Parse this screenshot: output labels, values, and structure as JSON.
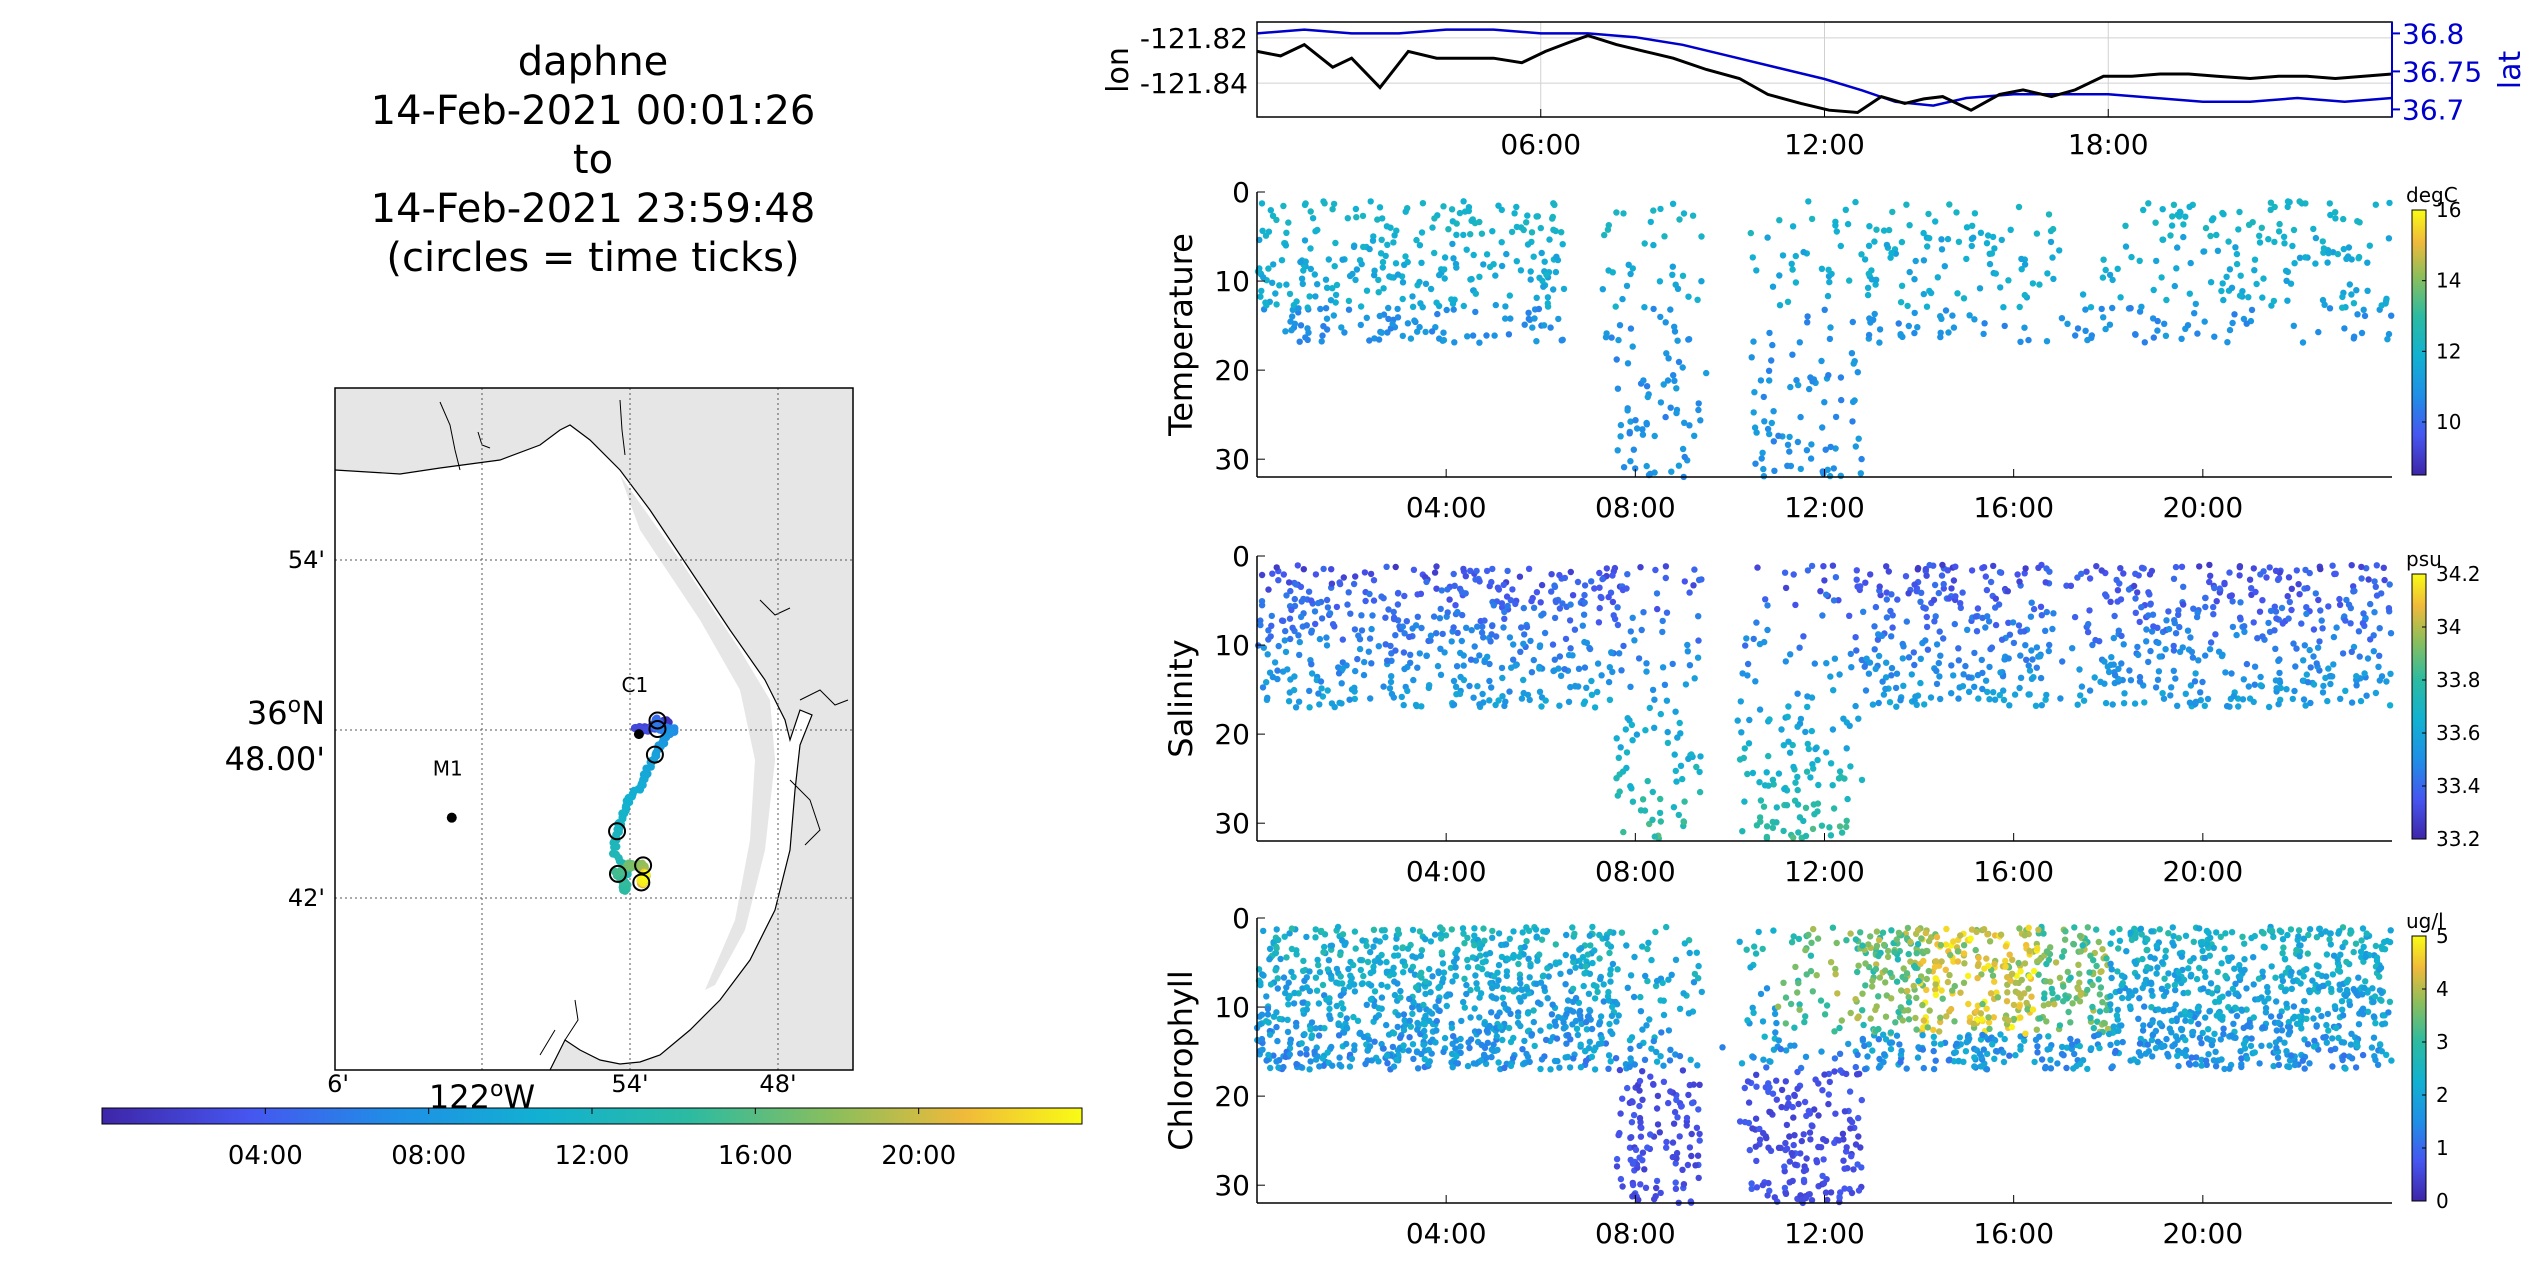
{
  "title": {
    "lines": [
      "daphne",
      "14-Feb-2021 00:01:26",
      "to",
      "14-Feb-2021 23:59:48",
      "(circles = time ticks)"
    ]
  },
  "map": {
    "lat_ticks": [
      "54'",
      "36°N 48.00'",
      "42'"
    ],
    "lat_values": [
      36.9,
      36.8,
      36.7
    ],
    "lon_ticks": [
      "6'",
      "122°W",
      "54'",
      "48'"
    ],
    "lon_values": [
      -122.1,
      -122.0,
      -121.9,
      -121.8
    ],
    "xlim": [
      -122.1,
      -121.754
    ],
    "ylim": [
      36.6,
      37.0
    ],
    "stations": [
      {
        "label": "M1",
        "lon": -122.022,
        "lat": 36.748
      },
      {
        "label": "C1",
        "lon": -121.897,
        "lat": 36.797
      }
    ],
    "land_color": "#e6e6e6",
    "time_colorbar": {
      "ticks": [
        "04:00",
        "08:00",
        "12:00",
        "16:00",
        "20:00"
      ],
      "tick_hours": [
        4,
        8,
        12,
        16,
        20
      ],
      "range_hours": [
        0,
        24
      ]
    }
  },
  "charts": {
    "position": {
      "type": "line",
      "ylabel_left": "lon",
      "ylabel_right": "lat",
      "left_ticks": [
        "-121.82",
        "-121.84"
      ],
      "left_tick_values": [
        -121.82,
        -121.84
      ],
      "left_ylim": [
        -121.855,
        -121.813
      ],
      "right_ticks": [
        "36.8",
        "36.75",
        "36.7"
      ],
      "right_tick_values": [
        36.8,
        36.75,
        36.7
      ],
      "right_ylim": [
        36.69,
        36.815
      ],
      "x_ticks": [
        "06:00",
        "12:00",
        "18:00"
      ],
      "x_tick_hours": [
        6,
        12,
        18
      ],
      "xlim": [
        0,
        24
      ],
      "grid": true,
      "lon_color": "#000000",
      "lat_color": "#0000cc",
      "lon_hours": [
        0,
        0.5,
        1,
        1.6,
        2,
        2.6,
        3.2,
        3.8,
        4.3,
        5,
        5.6,
        6.1,
        6.6,
        7.0,
        7.6,
        8.2,
        8.8,
        9.5,
        10.2,
        10.8,
        11.5,
        12.1,
        12.7,
        13.2,
        13.7,
        14.1,
        14.5,
        15.1,
        15.7,
        16.2,
        16.8,
        17.3,
        17.9,
        18.5,
        19.1,
        19.7,
        20.3,
        21,
        21.6,
        22.2,
        22.8,
        23.4,
        24
      ],
      "lon_values": [
        -121.826,
        -121.828,
        -121.823,
        -121.833,
        -121.829,
        -121.842,
        -121.826,
        -121.829,
        -121.829,
        -121.829,
        -121.831,
        -121.826,
        -121.822,
        -121.819,
        -121.823,
        -121.826,
        -121.829,
        -121.834,
        -121.838,
        -121.845,
        -121.849,
        -121.852,
        -121.853,
        -121.846,
        -121.849,
        -121.847,
        -121.846,
        -121.852,
        -121.845,
        -121.843,
        -121.846,
        -121.843,
        -121.837,
        -121.837,
        -121.836,
        -121.836,
        -121.837,
        -121.838,
        -121.837,
        -121.837,
        -121.838,
        -121.837,
        -121.836
      ],
      "lat_hours": [
        0,
        1,
        2,
        3,
        4,
        5,
        6,
        7,
        8,
        9,
        10,
        11,
        12,
        12.8,
        13.5,
        14.3,
        15,
        16,
        17,
        18,
        19,
        20,
        21,
        22,
        23,
        24
      ],
      "lat_values": [
        36.8,
        36.805,
        36.8,
        36.8,
        36.805,
        36.805,
        36.8,
        36.8,
        36.795,
        36.785,
        36.77,
        36.755,
        36.74,
        36.725,
        36.71,
        36.705,
        36.715,
        36.72,
        36.72,
        36.72,
        36.715,
        36.71,
        36.71,
        36.715,
        36.71,
        36.715
      ]
    },
    "temperature": {
      "type": "scatter",
      "ylabel": "Temperature",
      "y_ticks": [
        "0",
        "10",
        "20",
        "30"
      ],
      "y_tick_values": [
        0,
        10,
        20,
        30
      ],
      "ylim": [
        0,
        32
      ],
      "y_reversed": true,
      "x_ticks": [
        "04:00",
        "08:00",
        "12:00",
        "16:00",
        "20:00"
      ],
      "x_tick_hours": [
        4,
        8,
        12,
        16,
        20
      ],
      "xlim": [
        0,
        24
      ],
      "colorbar": {
        "unit": "degC",
        "ticks": [
          "16",
          "14",
          "12",
          "10"
        ],
        "tick_values": [
          16,
          14,
          12,
          10
        ],
        "range": [
          8.5,
          16
        ]
      }
    },
    "salinity": {
      "type": "scatter",
      "ylabel": "Salinity",
      "y_ticks": [
        "0",
        "10",
        "20",
        "30"
      ],
      "y_tick_values": [
        0,
        10,
        20,
        30
      ],
      "ylim": [
        0,
        32
      ],
      "y_reversed": true,
      "x_ticks": [
        "04:00",
        "08:00",
        "12:00",
        "16:00",
        "20:00"
      ],
      "x_tick_hours": [
        4,
        8,
        12,
        16,
        20
      ],
      "xlim": [
        0,
        24
      ],
      "colorbar": {
        "unit": "psu",
        "ticks": [
          "34.2",
          "34",
          "33.8",
          "33.6",
          "33.4",
          "33.2"
        ],
        "tick_values": [
          34.2,
          34.0,
          33.8,
          33.6,
          33.4,
          33.2
        ],
        "range": [
          33.2,
          34.2
        ]
      }
    },
    "chlorophyll": {
      "type": "scatter",
      "ylabel": "Chlorophyll",
      "y_ticks": [
        "0",
        "10",
        "20",
        "30"
      ],
      "y_tick_values": [
        0,
        10,
        20,
        30
      ],
      "ylim": [
        0,
        32
      ],
      "y_reversed": true,
      "x_ticks": [
        "04:00",
        "08:00",
        "12:00",
        "16:00",
        "20:00"
      ],
      "x_tick_hours": [
        4,
        8,
        12,
        16,
        20
      ],
      "xlim": [
        0,
        24
      ],
      "colorbar": {
        "unit": "ug/l",
        "ticks": [
          "5",
          "4",
          "3",
          "2",
          "1",
          "0"
        ],
        "tick_values": [
          5,
          4,
          3,
          2,
          1,
          0
        ],
        "range": [
          0,
          5
        ]
      }
    }
  }
}
